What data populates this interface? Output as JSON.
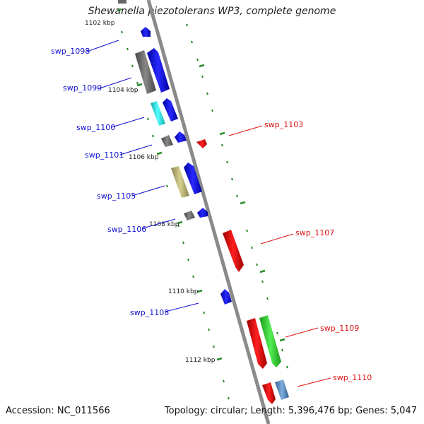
{
  "title": "Shewanella piezotolerans WP3, complete genome",
  "accession": "Accession: NC_011566",
  "summary": "Topology: circular; Length: 5,396,476 bp; Genes: 5,047",
  "kbp_labels": [
    {
      "name": "kbp-1102",
      "text": "1102 kbp"
    },
    {
      "name": "kbp-1104",
      "text": "1104 kbp"
    },
    {
      "name": "kbp-1106",
      "text": "1106 kbp"
    },
    {
      "name": "kbp-1108",
      "text": "1108 kbp"
    },
    {
      "name": "kbp-1110",
      "text": "1110 kbp"
    },
    {
      "name": "kbp-1112",
      "text": "1112 kbp"
    }
  ],
  "genes_left": [
    {
      "id": "swp_1098"
    },
    {
      "id": "swp_1099"
    },
    {
      "id": "swp_1100"
    },
    {
      "id": "swp_1101"
    },
    {
      "id": "swp_1105"
    },
    {
      "id": "swp_1106"
    },
    {
      "id": "swp_1108"
    }
  ],
  "genes_right": [
    {
      "id": "swp_1103"
    },
    {
      "id": "swp_1107"
    },
    {
      "id": "swp_1109"
    },
    {
      "id": "swp_1110"
    }
  ],
  "colors": {
    "forward_gene": "#1010d0",
    "reverse_gene": "#dd1111",
    "backbone": "#8a8a8a",
    "ticks": "#2a8a2a",
    "gray_feature": "#666666",
    "cyan_feature": "#22dddd",
    "khaki_feature": "#b8b070",
    "green_feature": "#33cc33",
    "steelblue_feature": "#4a7fb5"
  }
}
